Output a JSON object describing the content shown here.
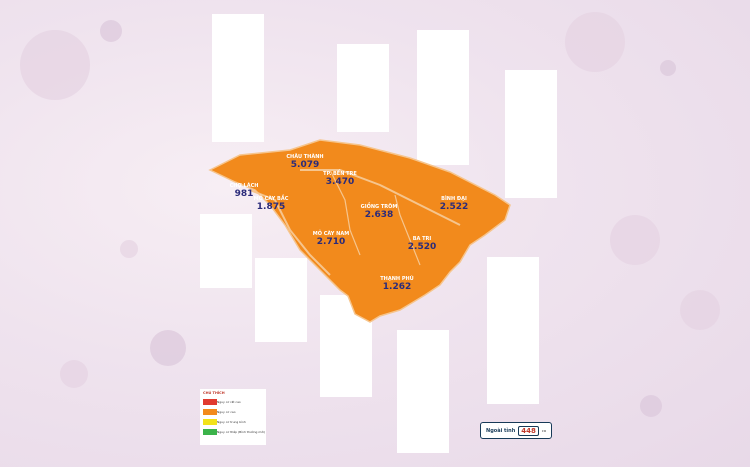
{
  "map": {
    "colors": {
      "area": "#f28a1c",
      "border": "#f6c58d",
      "lines": "#2b2b7a"
    },
    "areas": [
      {
        "id": "chau-thanh",
        "name": "CHÂU THÀNH",
        "value": "5.079"
      },
      {
        "id": "tp-ben-tre",
        "name": "TP. BẾN TRE",
        "value": "3.470"
      },
      {
        "id": "cho-lach",
        "name": "CHỢ LÁCH",
        "value": "981"
      },
      {
        "id": "mo-cay-bac",
        "name": "MỎ CÀY BẮC",
        "value": "1.875"
      },
      {
        "id": "giong-trom",
        "name": "GIỒNG TRÔM",
        "value": "2.638"
      },
      {
        "id": "binh-dai",
        "name": "BÌNH ĐẠI",
        "value": "2.522"
      },
      {
        "id": "mo-cay-nam",
        "name": "MỎ CÀY NAM",
        "value": "2.710"
      },
      {
        "id": "ba-tri",
        "name": "BA TRI",
        "value": "2.520"
      },
      {
        "id": "thanh-phu",
        "name": "THẠNH PHÚ",
        "value": "1.262"
      }
    ]
  },
  "legend": {
    "title": "CHÚ THÍCH",
    "items": [
      {
        "label": "Nguy cơ rất cao",
        "color": "#e03a2f"
      },
      {
        "label": "Nguy cơ cao",
        "color": "#f28a1c"
      },
      {
        "label": "Nguy cơ trung bình",
        "color": "#f2e21a"
      },
      {
        "label": "Nguy cơ thấp (Bình thường mới)",
        "color": "#3bb34a"
      }
    ]
  },
  "total": {
    "label": "Ngoài tỉnh",
    "value": "448",
    "unit": "ca"
  }
}
